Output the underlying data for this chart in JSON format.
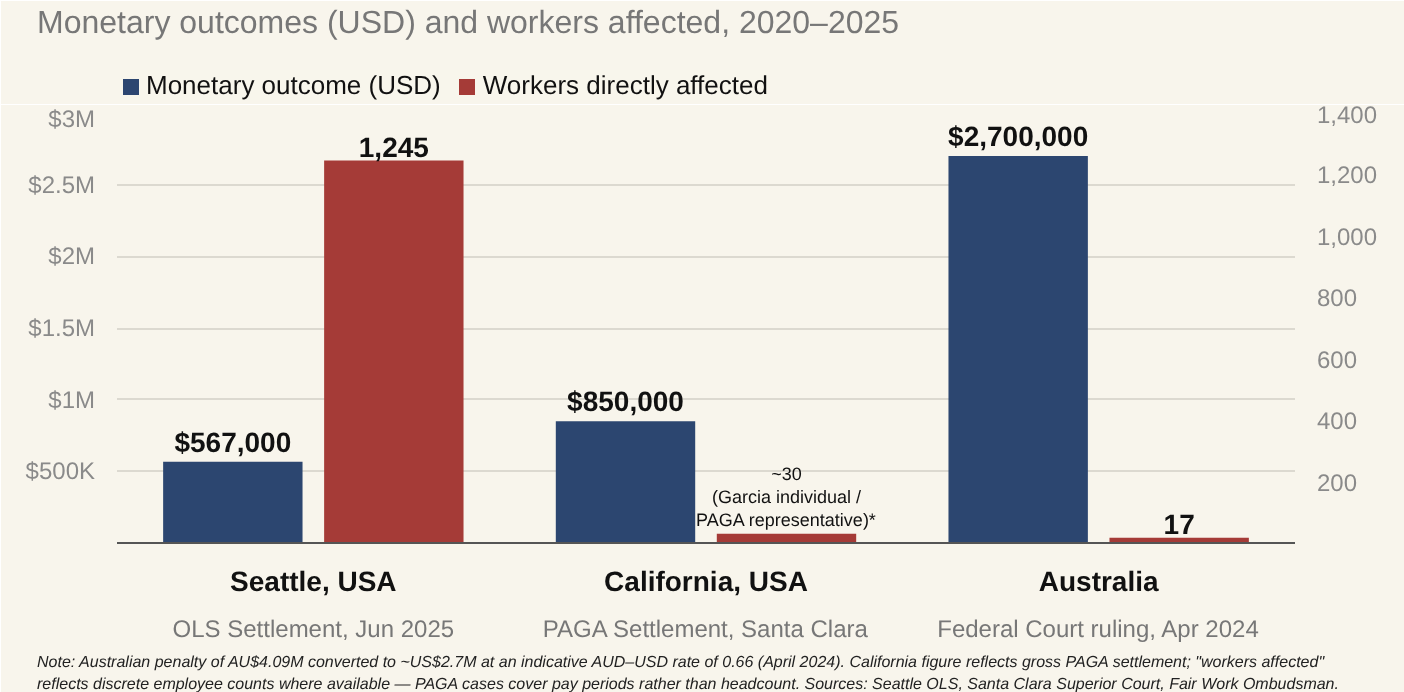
{
  "chart_data": {
    "type": "bar",
    "title": "Monetary outcomes (USD) and workers affected, 2020–2025",
    "categories": [
      "Seattle, USA\nOLS Settlement, Jun 2025",
      "California, USA\nPAGA Settlement, Santa Clara",
      "Australia\nFederal Court ruling, Apr 2024"
    ],
    "series": [
      {
        "name": "Monetary outcome (USD)",
        "color": "#2c4670",
        "values": [
          567000,
          850000,
          2700000
        ],
        "value_labels": [
          "$567,000",
          "$850,000",
          "$2,700,000"
        ]
      },
      {
        "name": "Workers directly affected",
        "color": "#a53b37",
        "axis": "y2",
        "values": [
          1245,
          30,
          17
        ],
        "value_labels": [
          "1,245",
          "~30\n(Garcia individual /\nPAGA representative)*",
          "17"
        ]
      }
    ],
    "ylim": [
      0,
      3000000
    ],
    "yticks": [
      {
        "value": 500000,
        "label": "$500K"
      },
      {
        "value": 1000000,
        "label": "$1M"
      },
      {
        "value": 1500000,
        "label": "$1.5M"
      },
      {
        "value": 2000000,
        "label": "$2M"
      },
      {
        "value": 2500000,
        "label": "$2.5M"
      },
      {
        "value": 3000000,
        "label": "$3M"
      }
    ],
    "y2lim": [
      0,
      1400
    ],
    "y2ticks": [
      {
        "value": 200,
        "label": "200"
      },
      {
        "value": 400,
        "label": "400"
      },
      {
        "value": 600,
        "label": "600"
      },
      {
        "value": 800,
        "label": "800"
      },
      {
        "value": 1000,
        "label": "1,000"
      },
      {
        "value": 1200,
        "label": "1,200"
      },
      {
        "value": 1400,
        "label": "1,400"
      }
    ],
    "grid": "y",
    "legend": "top left",
    "annotations": [
      "Note: Australian penalty of AU$4.09M converted to ~US$2.7M at an indicative AUD–USD rate of 0.66 (April 2024). California figure reflects gross PAGA settlement; \"workers affected\"",
      "reflects discrete employee counts where available — PAGA cases cover pay periods rather than headcount. Sources: Seattle OLS, Santa Clara Superior Court, Fair Work Ombudsman."
    ]
  }
}
